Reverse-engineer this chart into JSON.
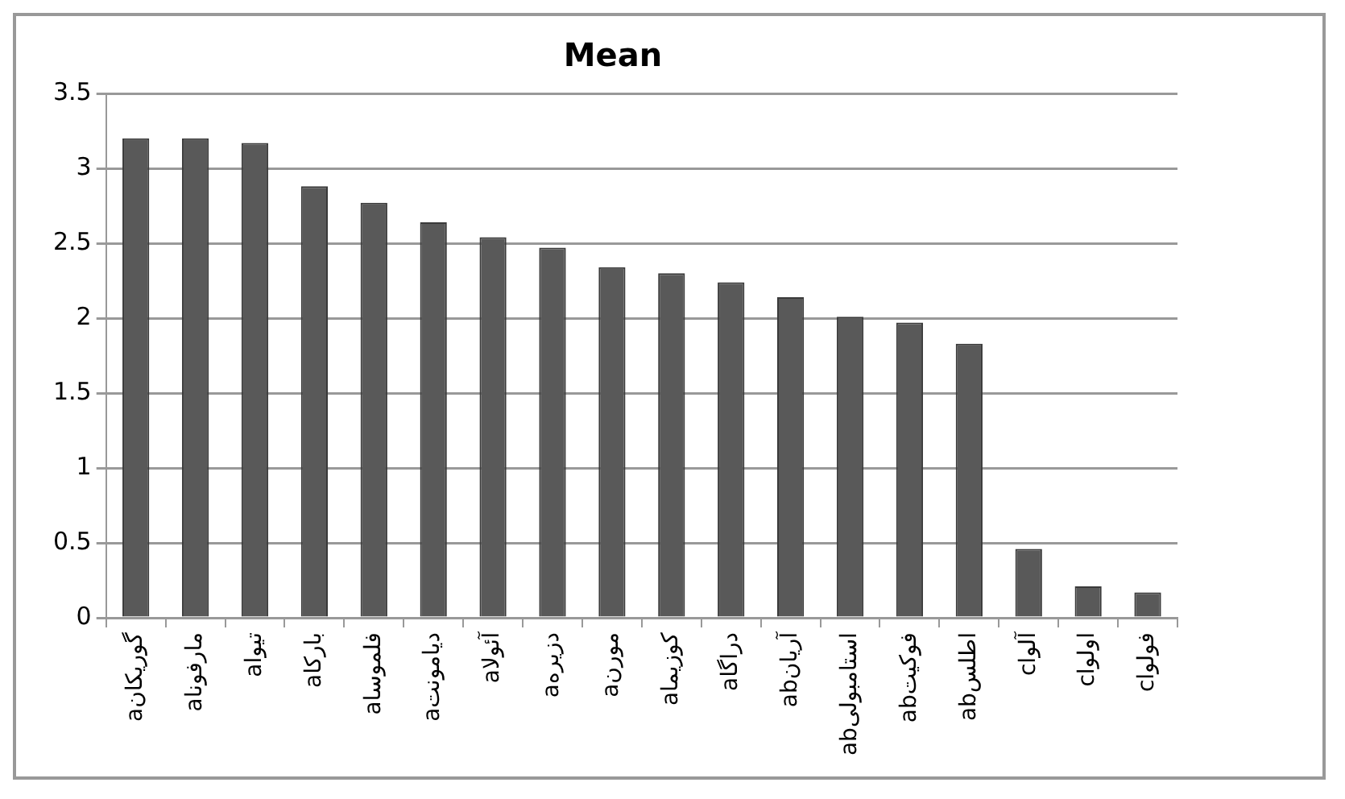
{
  "chart_data": {
    "type": "bar",
    "title": "Mean",
    "categories": [
      "aگوریکان",
      "aمارفونا",
      "aتیوا",
      "aبارکا",
      "aفلموسا",
      "aدیامونت",
      "aآئولا",
      "aدزیره",
      "aمورن",
      "aکوزیما",
      "aدراگا",
      "abآریان",
      "abاستامبولی",
      "abفوکیت",
      "abاطلس",
      "cآلوا",
      "cاولوا",
      "cفولوا"
    ],
    "values": [
      3.2,
      3.2,
      3.17,
      2.88,
      2.77,
      2.64,
      2.54,
      2.47,
      2.34,
      2.3,
      2.24,
      2.14,
      2.01,
      1.97,
      1.83,
      0.46,
      0.21,
      0.17
    ],
    "color": "#595959",
    "ylim": [
      0,
      3.5
    ],
    "yticks": [
      0,
      0.5,
      1,
      1.5,
      2,
      2.5,
      3,
      3.5
    ],
    "grid": "y"
  }
}
